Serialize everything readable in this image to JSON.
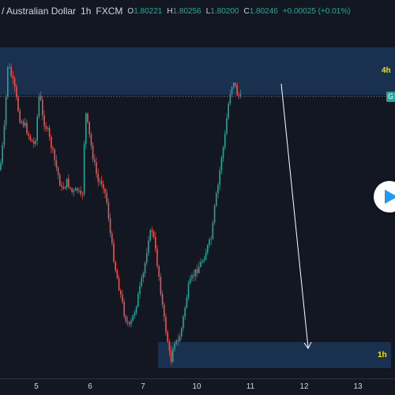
{
  "header": {
    "symbol": "/ Australian Dollar",
    "interval": "1h",
    "source": "FXCM",
    "ohlc": [
      {
        "k": "O",
        "v": "1.80221"
      },
      {
        "k": "H",
        "v": "1.80256"
      },
      {
        "k": "L",
        "v": "1.80200"
      },
      {
        "k": "C",
        "v": "1.80246"
      }
    ],
    "change": "+0.00025 (+0.01%)"
  },
  "zones": {
    "upper_label": "4h",
    "lower_label": "1h"
  },
  "price_badge": "G",
  "time_axis": [
    "5",
    "6",
    "7",
    "10",
    "11",
    "12",
    "13"
  ],
  "colors": {
    "background": "#131722",
    "bull": "#26a69a",
    "bear": "#ef5350",
    "zone": "#1e3a5f",
    "label": "#f5e000",
    "arrow": "#ffffff",
    "play_icon": "#2196f3"
  },
  "icons": {
    "play": "play-icon"
  }
}
